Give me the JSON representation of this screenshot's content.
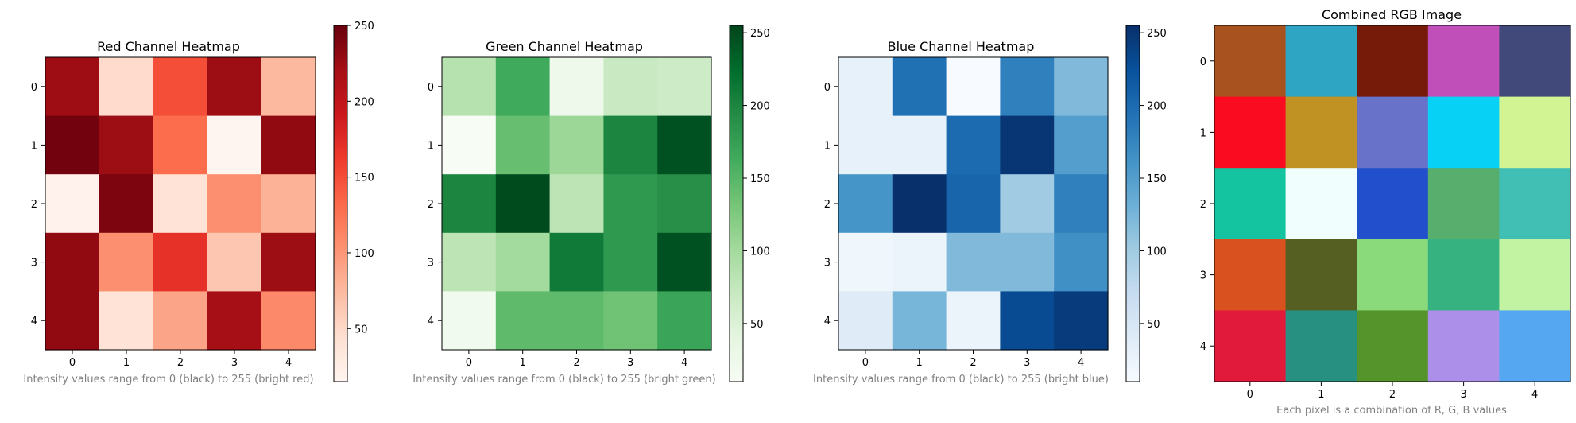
{
  "chart_data": [
    {
      "type": "heatmap",
      "title": "Red Channel Heatmap",
      "xlabel": "Intensity values range from 0 (black) to 255 (bright red)",
      "ylabel": "",
      "x": [
        0,
        1,
        2,
        3,
        4
      ],
      "y": [
        0,
        1,
        2,
        3,
        4
      ],
      "values": [
        [
          224,
          48,
          150,
          225,
          75
        ],
        [
          245,
          225,
          130,
          15,
          230
        ],
        [
          20,
          240,
          40,
          105,
          80
        ],
        [
          230,
          105,
          170,
          65,
          225
        ],
        [
          230,
          40,
          90,
          220,
          110
        ]
      ],
      "vmin": 15,
      "vmax": 250,
      "colorbar_ticks": [
        50,
        100,
        150,
        200,
        250
      ],
      "colormap": [
        "#fff5f0",
        "#fee0d2",
        "#fcbba1",
        "#fc9272",
        "#fb6a4a",
        "#ef3b2c",
        "#cb181d",
        "#a50f15",
        "#67000d"
      ]
    },
    {
      "type": "heatmap",
      "title": "Green Channel Heatmap",
      "xlabel": "Intensity values range from 0 (black) to 255 (bright green)",
      "ylabel": "",
      "x": [
        0,
        1,
        2,
        3,
        4
      ],
      "y": [
        0,
        1,
        2,
        3,
        4
      ],
      "values": [
        [
          85,
          165,
          25,
          70,
          65
        ],
        [
          10,
          140,
          105,
          200,
          245
        ],
        [
          200,
          250,
          80,
          180,
          190
        ],
        [
          80,
          100,
          210,
          180,
          245
        ],
        [
          20,
          145,
          145,
          135,
          170
        ]
      ],
      "vmin": 10,
      "vmax": 255,
      "colorbar_ticks": [
        50,
        100,
        150,
        200,
        250
      ],
      "colormap": [
        "#f7fcf5",
        "#e5f5e0",
        "#c7e9c0",
        "#a1d99b",
        "#74c476",
        "#41ab5d",
        "#238b45",
        "#006d2c",
        "#00441b"
      ]
    },
    {
      "type": "heatmap",
      "title": "Blue Channel Heatmap",
      "xlabel": "Intensity values range from 0 (black) to 255 (bright blue)",
      "ylabel": "",
      "x": [
        0,
        1,
        2,
        3,
        4
      ],
      "y": [
        0,
        1,
        2,
        3,
        4
      ],
      "values": [
        [
          30,
          195,
          10,
          180,
          120
        ],
        [
          30,
          30,
          200,
          250,
          150
        ],
        [
          160,
          255,
          205,
          100,
          180
        ],
        [
          20,
          25,
          120,
          120,
          165
        ],
        [
          40,
          125,
          25,
          230,
          245
        ]
      ],
      "vmin": 10,
      "vmax": 255,
      "colorbar_ticks": [
        50,
        100,
        150,
        200,
        250
      ],
      "colormap": [
        "#f7fbff",
        "#deebf7",
        "#c6dbef",
        "#9ecae1",
        "#6baed6",
        "#4292c6",
        "#2171b5",
        "#08519c",
        "#08306b"
      ]
    },
    {
      "type": "heatmap",
      "title": "Combined RGB Image",
      "xlabel": "Each pixel is a combination of R, G, B values",
      "ylabel": "",
      "x": [
        0,
        1,
        2,
        3,
        4
      ],
      "y": [
        0,
        1,
        2,
        3,
        4
      ],
      "pixels": [
        [
          "#a8521f",
          "#2ea5c3",
          "#761a0a",
          "#c04fba",
          "#404979"
        ],
        [
          "#fa0b20",
          "#c09123",
          "#6872c8",
          "#08d1f6",
          "#d2f493"
        ],
        [
          "#14c4a0",
          "#f0fefe",
          "#2250cd",
          "#58ae6d",
          "#42bfb5"
        ],
        [
          "#d8511e",
          "#565f22",
          "#8ad97b",
          "#36b180",
          "#c2f3a2"
        ],
        [
          "#e11a3b",
          "#279080",
          "#54942a",
          "#ab8fe8",
          "#55a7f2"
        ]
      ]
    }
  ]
}
